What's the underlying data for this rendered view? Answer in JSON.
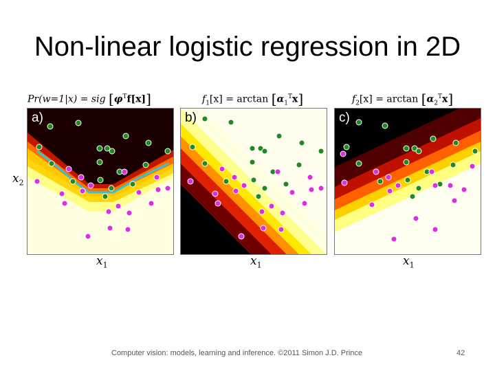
{
  "slide": {
    "title": "Non-linear logistic regression in 2D",
    "footer": "Computer vision: models, learning and inference.  ©2011 Simon J.D. Prince",
    "page_number": "42"
  },
  "formulas": {
    "a_lhs": "Pr(w=1|x) = sig",
    "a_body": "φ",
    "a_sup": "T",
    "a_tail": "f[x]",
    "b_lhs": "f",
    "b_sub": "1",
    "b_mid": "[x] = arctan",
    "b_alpha": "α",
    "b_alpha_sub": "1",
    "b_sup": "T",
    "b_tail": "x",
    "c_lhs": "f",
    "c_sub": "2",
    "c_mid": "[x] = arctan",
    "c_alpha": "α",
    "c_alpha_sub": "2",
    "c_sup": "T",
    "c_tail": "x"
  },
  "panels": [
    {
      "label": "a)",
      "x_axis": "x",
      "x_axis_sub": "1"
    },
    {
      "label": "b)",
      "x_axis": "x",
      "x_axis_sub": "1"
    },
    {
      "label": "c)",
      "x_axis": "x",
      "x_axis_sub": "1"
    }
  ],
  "y_axis": {
    "text": "x",
    "sub": "2"
  },
  "colors": {
    "class_w1": "#1f8a1f",
    "class_w0": "#e02ce0",
    "boundary": "#36c3d4"
  }
}
